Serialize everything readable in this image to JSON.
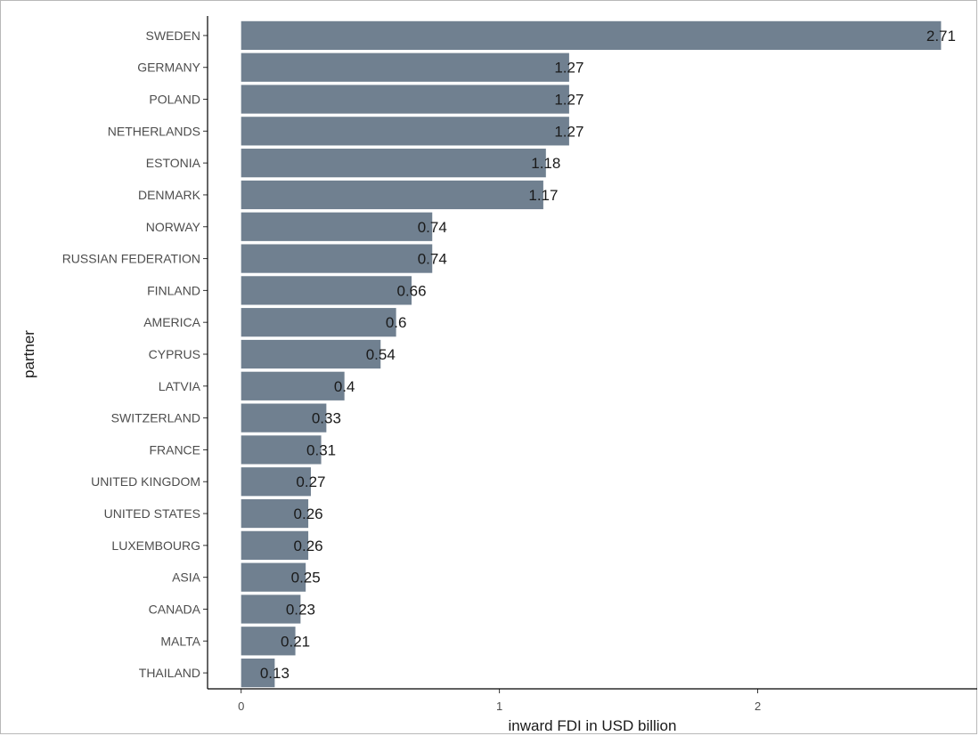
{
  "chart_data": {
    "type": "bar",
    "orientation": "horizontal",
    "xlabel": "inward FDI in USD billion",
    "ylabel": "partner",
    "xlim": [
      -0.13,
      2.85
    ],
    "x_ticks": [
      0,
      1,
      2
    ],
    "bar_color": "#708090",
    "grid": false,
    "categories": [
      "SWEDEN",
      "GERMANY",
      "POLAND",
      "NETHERLANDS",
      "ESTONIA",
      "DENMARK",
      "NORWAY",
      "RUSSIAN FEDERATION",
      "FINLAND",
      "AMERICA",
      "CYPRUS",
      "LATVIA",
      "SWITZERLAND",
      "FRANCE",
      "UNITED KINGDOM",
      "UNITED STATES",
      "LUXEMBOURG",
      "ASIA",
      "CANADA",
      "MALTA",
      "THAILAND"
    ],
    "values": [
      2.71,
      1.27,
      1.27,
      1.27,
      1.18,
      1.17,
      0.74,
      0.74,
      0.66,
      0.6,
      0.54,
      0.4,
      0.33,
      0.31,
      0.27,
      0.26,
      0.26,
      0.25,
      0.23,
      0.21,
      0.13
    ],
    "value_labels": [
      "2.71",
      "1.27",
      "1.27",
      "1.27",
      "1.18",
      "1.17",
      "0.74",
      "0.74",
      "0.66",
      "0.6",
      "0.54",
      "0.4",
      "0.33",
      "0.31",
      "0.27",
      "0.26",
      "0.26",
      "0.25",
      "0.23",
      "0.21",
      "0.13"
    ]
  }
}
